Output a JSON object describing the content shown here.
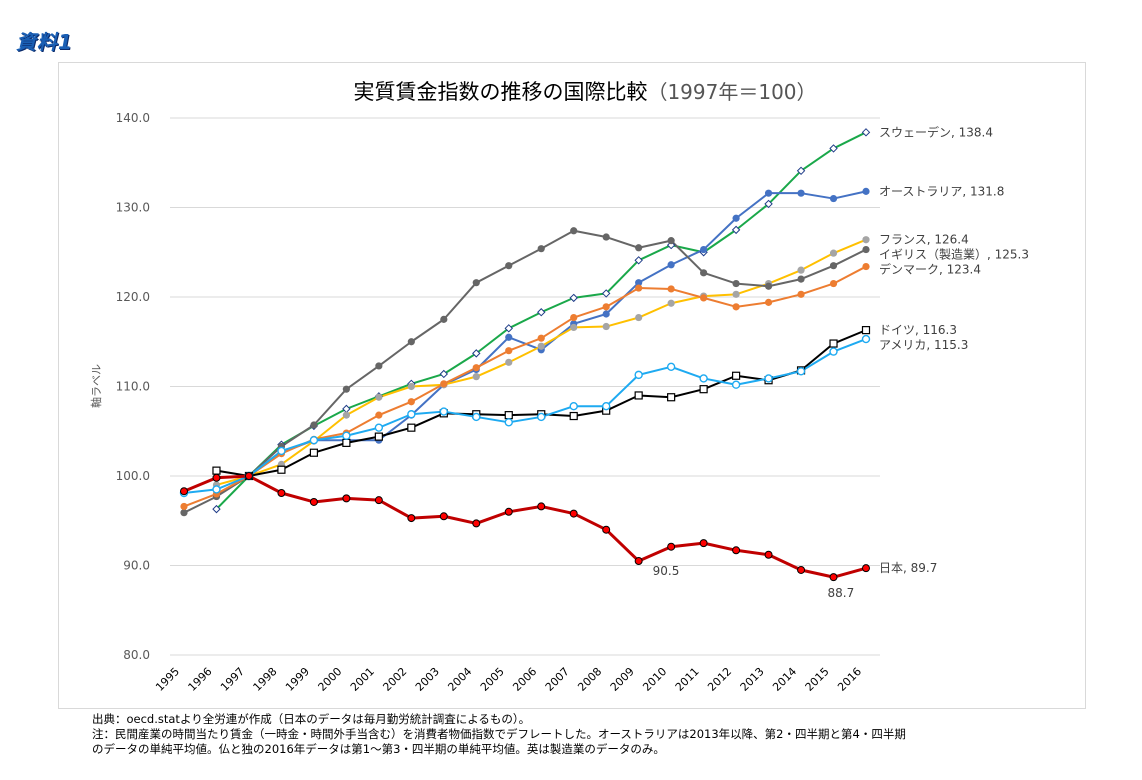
{
  "doc_label": "資料1",
  "footer": {
    "source": "出典：oecd.statより全労連が作成（日本のデータは毎月勤労統計調査によるもの）。",
    "note_line1": "注：民間産業の時間当たり賃金（一時金・時間外手当含む）を消費者物価指数でデフレートした。オーストラリアは2013年以降、第2・四半期と第4・四半期",
    "note_line2": "のデータの単純平均値。仏と独の2016年データは第1～第3・四半期の単純平均値。英は製造業のデータのみ。"
  },
  "chart_data": {
    "type": "line",
    "title": "実質賃金指数の推移の国際比較",
    "subtitle": "（1997年＝100）",
    "xlabel": "",
    "ylabel": "軸ラベル",
    "ylim": [
      80,
      140
    ],
    "yticks": [
      "80.0",
      "90.0",
      "100.0",
      "110.0",
      "120.0",
      "130.0",
      "140.0"
    ],
    "grid": true,
    "legend": "end-of-line labels",
    "x": [
      "1995",
      "1996",
      "1997",
      "1998",
      "1999",
      "2000",
      "2001",
      "2002",
      "2003",
      "2004",
      "2005",
      "2006",
      "2007",
      "2008",
      "2009",
      "2010",
      "2011",
      "2012",
      "2013",
      "2014",
      "2015",
      "2016"
    ],
    "annotations": [
      {
        "series": "日本",
        "x": "2009",
        "text": "90.5"
      },
      {
        "series": "日本",
        "x": "2015",
        "text": "88.7"
      }
    ],
    "series": [
      {
        "name": "スウェーデン",
        "end_label": "スウェーデン, 138.4",
        "color": "#1aa84a",
        "marker": "diamond-open",
        "values": [
          null,
          96.3,
          100,
          103.5,
          105.6,
          107.5,
          108.9,
          110.3,
          111.4,
          113.7,
          116.5,
          118.3,
          119.9,
          120.4,
          124.1,
          125.8,
          125.0,
          127.5,
          130.4,
          134.1,
          136.6,
          138.4
        ]
      },
      {
        "name": "オーストラリア",
        "end_label": "オーストラリア, 131.8",
        "color": "#4472c4",
        "marker": "circle",
        "values": [
          null,
          97.8,
          100,
          102.6,
          104.0,
          104.0,
          104.0,
          106.8,
          110.2,
          111.9,
          115.5,
          114.1,
          117.0,
          118.1,
          121.6,
          123.6,
          125.3,
          128.8,
          131.6,
          131.6,
          131.0,
          131.8
        ]
      },
      {
        "name": "フランス",
        "end_label": "フランス, 126.4",
        "color": "#ffc000",
        "marker": "circle",
        "marker_color": "#a5a5a5",
        "values": [
          null,
          99.0,
          100,
          101.3,
          103.9,
          106.8,
          108.8,
          110.0,
          110.2,
          111.1,
          112.7,
          114.5,
          116.6,
          116.7,
          117.7,
          119.3,
          120.1,
          120.3,
          121.5,
          123.0,
          124.9,
          126.4
        ]
      },
      {
        "name": "イギリス（製造業）",
        "end_label": "イギリス（製造業）, 125.3",
        "color": "#666666",
        "marker": "circle",
        "values": [
          95.9,
          97.7,
          100,
          103.3,
          105.7,
          109.7,
          112.3,
          115.0,
          117.5,
          121.6,
          123.5,
          125.4,
          127.4,
          126.7,
          125.5,
          126.3,
          122.7,
          121.5,
          121.2,
          122.0,
          123.5,
          125.3
        ]
      },
      {
        "name": "デンマーク",
        "end_label": "デンマーク, 123.4",
        "color": "#ed7d31",
        "marker": "circle",
        "values": [
          96.6,
          98.0,
          100,
          102.5,
          104.1,
          104.8,
          106.8,
          108.3,
          110.3,
          112.1,
          114.0,
          115.4,
          117.7,
          118.9,
          121.0,
          120.9,
          119.9,
          118.9,
          119.4,
          120.3,
          121.5,
          123.4
        ]
      },
      {
        "name": "ドイツ",
        "end_label": "ドイツ, 116.3",
        "color": "#000000",
        "marker": "square-open",
        "values": [
          null,
          100.6,
          100,
          100.7,
          102.6,
          103.7,
          104.4,
          105.4,
          107.0,
          106.9,
          106.8,
          106.9,
          106.7,
          107.3,
          109.0,
          108.8,
          109.7,
          111.2,
          110.7,
          111.8,
          114.8,
          116.3
        ]
      },
      {
        "name": "アメリカ",
        "end_label": "アメリカ, 115.3",
        "color": "#1eaaf1",
        "marker": "circle-open",
        "values": [
          98.1,
          98.5,
          100,
          102.8,
          104.0,
          104.5,
          105.4,
          106.9,
          107.2,
          106.6,
          106.0,
          106.6,
          107.8,
          107.8,
          111.3,
          112.2,
          110.9,
          110.2,
          110.9,
          111.7,
          113.9,
          115.3
        ]
      },
      {
        "name": "日本",
        "end_label": "日本, 89.7",
        "color": "#c00000",
        "marker": "circle-red",
        "values": [
          98.3,
          99.8,
          100,
          98.1,
          97.1,
          97.5,
          97.3,
          95.3,
          95.5,
          94.7,
          96.0,
          96.6,
          95.8,
          94.0,
          90.5,
          92.1,
          92.5,
          91.7,
          91.2,
          89.5,
          88.7,
          89.7
        ]
      }
    ]
  }
}
